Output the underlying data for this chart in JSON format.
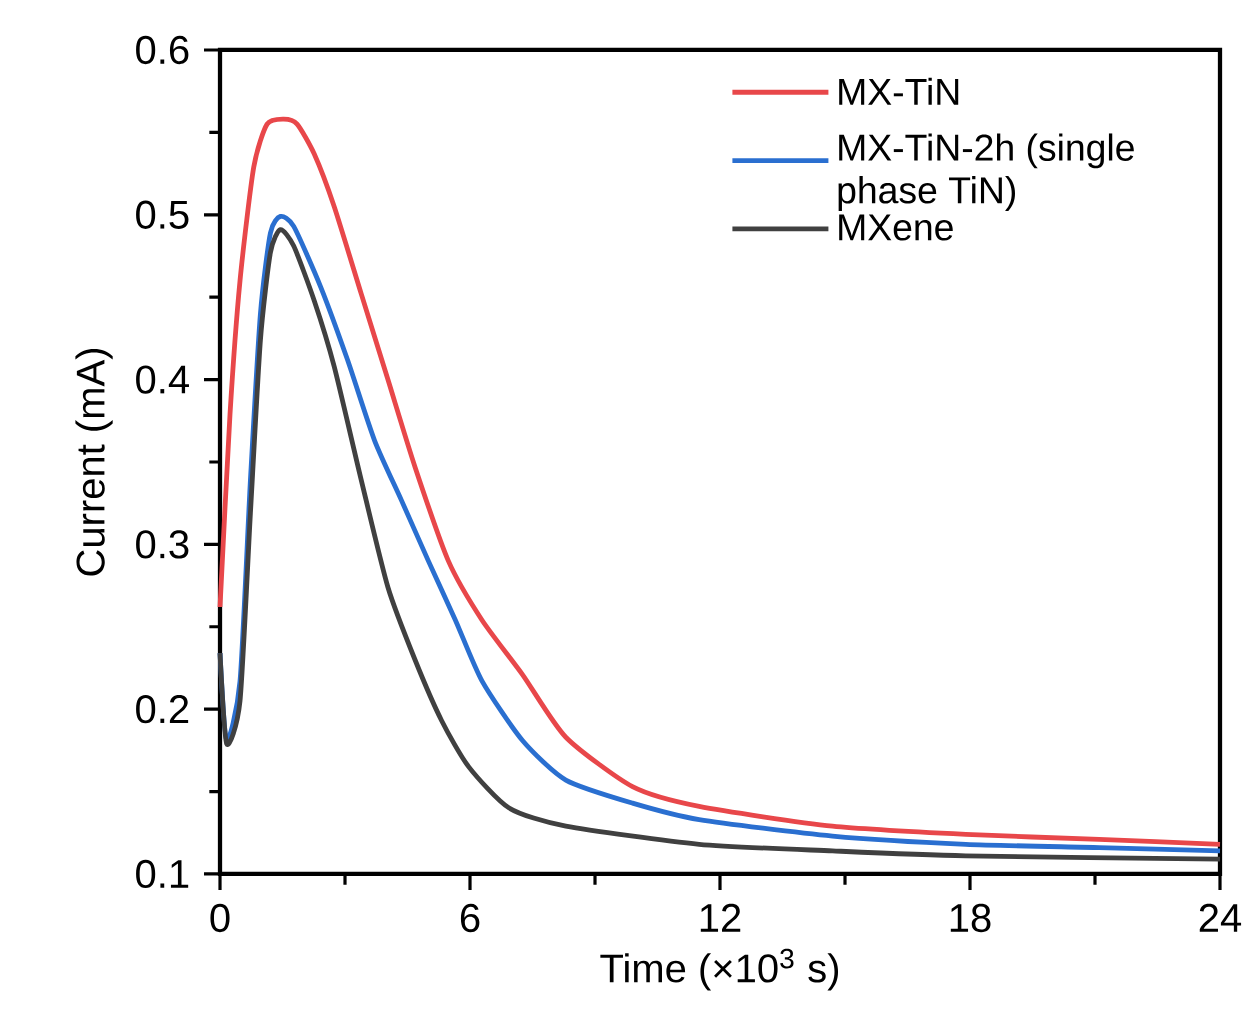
{
  "chart_data": {
    "type": "line",
    "xlabel": "Time (×10$^{3}$ s)",
    "ylabel": "Current (mA)",
    "xlim": [
      0,
      24
    ],
    "xticks": [
      0,
      6,
      12,
      18,
      24
    ],
    "ylim": [
      0.1,
      0.6
    ],
    "yticks": [
      0.1,
      0.2,
      0.3,
      0.4,
      0.5,
      0.6
    ],
    "legend": "top right",
    "grid": false,
    "marker": "none",
    "line_style": "solid",
    "series": [
      {
        "name": "MX-TiN",
        "color": "#e8474a",
        "x": [
          0,
          0.24,
          0.48,
          0.81,
          1.13,
          1.53,
          1.85,
          2.26,
          2.74,
          3.39,
          4.03,
          4.68,
          5.48,
          6.29,
          7.26,
          8.3,
          9.9,
          11.5,
          14.7,
          17.9,
          21.1,
          24
        ],
        "values": [
          0.262,
          0.379,
          0.46,
          0.529,
          0.555,
          0.558,
          0.555,
          0.537,
          0.505,
          0.452,
          0.4,
          0.347,
          0.29,
          0.254,
          0.221,
          0.183,
          0.153,
          0.141,
          0.129,
          0.124,
          0.121,
          0.118
        ]
      },
      {
        "name": "MX-TiN-2h (single phase TiN)",
        "color": "#2a6fd0",
        "x": [
          0,
          0.16,
          0.48,
          0.73,
          0.97,
          1.21,
          1.45,
          1.77,
          2.42,
          3.06,
          3.71,
          4.35,
          5.0,
          5.65,
          6.29,
          7.26,
          8.3,
          9.9,
          11.5,
          14.7,
          17.9,
          21.1,
          24
        ],
        "values": [
          0.234,
          0.181,
          0.217,
          0.339,
          0.44,
          0.489,
          0.499,
          0.493,
          0.456,
          0.412,
          0.363,
          0.327,
          0.29,
          0.254,
          0.217,
          0.181,
          0.157,
          0.143,
          0.133,
          0.123,
          0.118,
          0.116,
          0.114
        ]
      },
      {
        "name": "MXene",
        "color": "#404040",
        "x": [
          0,
          0.16,
          0.48,
          0.73,
          0.97,
          1.21,
          1.45,
          1.77,
          2.26,
          2.74,
          3.39,
          4.03,
          4.68,
          5.32,
          5.97,
          6.94,
          8.3,
          11.5,
          14.7,
          17.9,
          24
        ],
        "values": [
          0.234,
          0.179,
          0.205,
          0.319,
          0.424,
          0.477,
          0.491,
          0.481,
          0.448,
          0.408,
          0.339,
          0.274,
          0.23,
          0.193,
          0.165,
          0.14,
          0.129,
          0.118,
          0.114,
          0.111,
          0.109
        ]
      }
    ]
  }
}
